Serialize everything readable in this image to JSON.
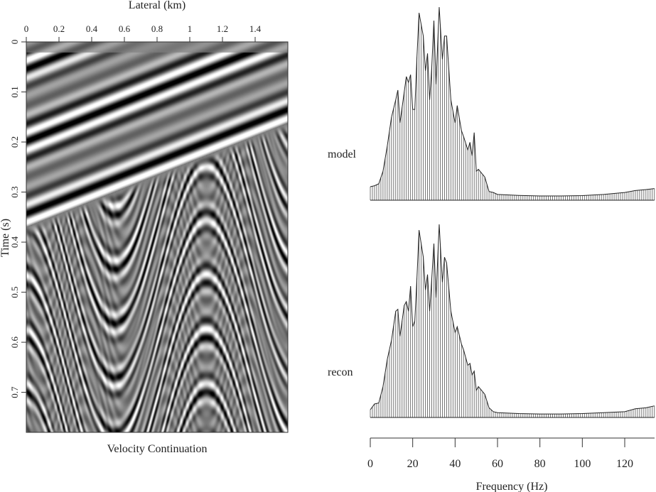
{
  "chart_data": [
    {
      "type": "heatmap",
      "title": "Velocity Continuation",
      "xlabel": "Lateral (km)",
      "ylabel": "Time (s)",
      "xlim": [
        0,
        1.6
      ],
      "ylim": [
        0.78,
        0
      ],
      "xticks": [
        "0",
        "0.2",
        "0.4",
        "0.6",
        "0.8",
        "1",
        "1.2",
        "1.4"
      ],
      "xtick_values": [
        0,
        0.2,
        0.4,
        0.6,
        0.8,
        1,
        1.2,
        1.4
      ],
      "yticks": [
        "0",
        "0.1",
        "0.2",
        "0.3",
        "0.4",
        "0.5",
        "0.6",
        "0.7"
      ],
      "ytick_values": [
        0,
        0.1,
        0.2,
        0.3,
        0.4,
        0.5,
        0.6,
        0.7
      ],
      "colormap": "gray",
      "grid": false
    },
    {
      "type": "area",
      "label": "model",
      "xlabel": "Frequency (Hz)",
      "xlim": [
        0,
        134
      ],
      "ylim": [
        0,
        1
      ],
      "freq": [
        0,
        2,
        4,
        6,
        8,
        10,
        12,
        13,
        14,
        16,
        17,
        18,
        19,
        20,
        21,
        22,
        23,
        25,
        26,
        27,
        28,
        29,
        30,
        31,
        32.5,
        34,
        35,
        36,
        38,
        40,
        41,
        43,
        44,
        46,
        47,
        48,
        49,
        50,
        51,
        54,
        56,
        58,
        60,
        70,
        80,
        90,
        100,
        110,
        120,
        125,
        130,
        134
      ],
      "amplitude": [
        0.07,
        0.075,
        0.085,
        0.15,
        0.28,
        0.43,
        0.52,
        0.57,
        0.4,
        0.56,
        0.64,
        0.61,
        0.65,
        0.47,
        0.47,
        0.74,
        0.97,
        0.85,
        0.67,
        0.76,
        0.52,
        0.69,
        0.93,
        0.6,
        1.0,
        0.73,
        0.85,
        0.85,
        0.52,
        0.4,
        0.49,
        0.36,
        0.33,
        0.26,
        0.3,
        0.23,
        0.35,
        0.15,
        0.16,
        0.12,
        0.045,
        0.04,
        0.03,
        0.025,
        0.022,
        0.022,
        0.024,
        0.03,
        0.04,
        0.05,
        0.055,
        0.06
      ]
    },
    {
      "type": "area",
      "label": "recon",
      "xlabel": "Frequency (Hz)",
      "xlim": [
        0,
        134
      ],
      "ylim": [
        0,
        1
      ],
      "freq": [
        0,
        2,
        4,
        6,
        8,
        10,
        12,
        13,
        14,
        16,
        17,
        18,
        19,
        20,
        21,
        22,
        23,
        25,
        26,
        27,
        28,
        29,
        30,
        31,
        32.5,
        34,
        35,
        36,
        38,
        40,
        41,
        43,
        44,
        46,
        47,
        48,
        49,
        50,
        51,
        54,
        56,
        58,
        60,
        70,
        80,
        90,
        100,
        110,
        120,
        125,
        130,
        134
      ],
      "amplitude": [
        0.04,
        0.07,
        0.075,
        0.16,
        0.3,
        0.4,
        0.55,
        0.56,
        0.42,
        0.58,
        0.6,
        0.55,
        0.68,
        0.47,
        0.5,
        0.72,
        0.97,
        0.83,
        0.66,
        0.74,
        0.55,
        0.72,
        0.9,
        0.62,
        1.0,
        0.7,
        0.83,
        0.8,
        0.55,
        0.44,
        0.47,
        0.38,
        0.35,
        0.27,
        0.28,
        0.22,
        0.24,
        0.14,
        0.16,
        0.12,
        0.05,
        0.03,
        0.025,
        0.02,
        0.018,
        0.018,
        0.02,
        0.025,
        0.03,
        0.045,
        0.05,
        0.06
      ]
    }
  ],
  "spectrum_axis": {
    "label": "Frequency (Hz)",
    "ticks": [
      "0",
      "20",
      "40",
      "60",
      "80",
      "100",
      "120"
    ],
    "tick_values": [
      0,
      20,
      40,
      60,
      80,
      100,
      120
    ]
  }
}
